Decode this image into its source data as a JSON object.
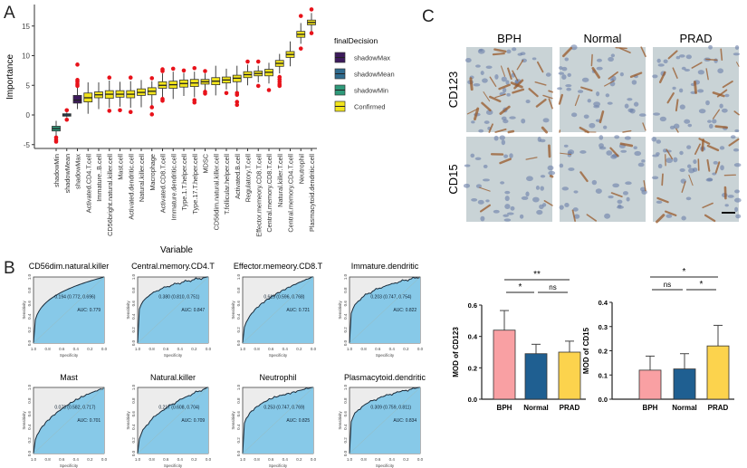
{
  "panels": {
    "a": "A",
    "b": "B",
    "c": "C"
  },
  "chart_data": [
    {
      "type": "boxplot",
      "panel": "A",
      "xlabel": "Variable",
      "ylabel": "Importance",
      "ylim": [
        -5.5,
        18.5
      ],
      "yticks": [
        -5,
        0,
        5,
        10,
        15
      ],
      "legend": {
        "title": "finalDecision",
        "placement": "right",
        "entries": [
          {
            "name": "shadowMax",
            "color": "#3d1a5c"
          },
          {
            "name": "shadowMean",
            "color": "#2f6b8e"
          },
          {
            "name": "shadowMin",
            "color": "#2e9a7a"
          },
          {
            "name": "Confirmed",
            "color": "#f2e41c"
          }
        ]
      },
      "outlier_color": "#e8121a",
      "categories": [
        "shadowMin",
        "shadowMean",
        "shadowMax",
        "Activated.CD4.T.cell",
        "Immature..B.cell",
        "CD56bright.natural.killer.cell",
        "Mast.cell",
        "Activated.dendritic.cell",
        "Natural.killer.cell",
        "Macrophage",
        "Activated.CD8.T.cell",
        "Immature.dendritic.cell",
        "Type.1.T.helper.cell",
        "Type.17.T.helper.cell",
        "MDSC",
        "CD56dim.natural.killer.cell",
        "T.follicular.helper.cell",
        "Activated.B.cell",
        "Regulatory.T.cell",
        "Effector.memeory.CD8.T.cell",
        "Central.memory.CD8.T.cell",
        "Natural.killer.T.cell",
        "Central.memory.CD4.T.cell",
        "Neutrophil",
        "Plasmacytoid.dendritic.cell"
      ],
      "groups": [
        "shadowMin",
        "shadowMean",
        "shadowMax",
        "Confirmed",
        "Confirmed",
        "Confirmed",
        "Confirmed",
        "Confirmed",
        "Confirmed",
        "Confirmed",
        "Confirmed",
        "Confirmed",
        "Confirmed",
        "Confirmed",
        "Confirmed",
        "Confirmed",
        "Confirmed",
        "Confirmed",
        "Confirmed",
        "Confirmed",
        "Confirmed",
        "Confirmed",
        "Confirmed",
        "Confirmed",
        "Confirmed"
      ],
      "boxes": [
        [
          -3.5,
          -2.7,
          -2.3,
          -1.9,
          -1.0
        ],
        [
          -0.4,
          -0.2,
          0,
          0.2,
          0.4
        ],
        [
          1.0,
          2.0,
          2.5,
          3.3,
          4.6
        ],
        [
          0.2,
          2.2,
          2.9,
          3.7,
          5.5
        ],
        [
          1.0,
          2.9,
          3.4,
          3.9,
          5.5
        ],
        [
          1.2,
          2.8,
          3.5,
          4.1,
          5.8
        ],
        [
          1.4,
          3.0,
          3.5,
          4.1,
          5.6
        ],
        [
          1.2,
          2.9,
          3.5,
          4.1,
          5.7
        ],
        [
          1.3,
          3.3,
          3.8,
          4.4,
          5.9
        ],
        [
          1.6,
          3.4,
          4.0,
          4.6,
          5.7
        ],
        [
          3.0,
          4.5,
          5.0,
          5.6,
          7.0
        ],
        [
          2.7,
          4.5,
          5.1,
          5.7,
          7.3
        ],
        [
          3.2,
          4.7,
          5.3,
          5.9,
          7.1
        ],
        [
          3.0,
          4.8,
          5.4,
          6.0,
          7.3
        ],
        [
          4.1,
          5.2,
          5.6,
          6.0,
          7.0
        ],
        [
          3.3,
          5.1,
          5.7,
          6.3,
          8.3
        ],
        [
          4.3,
          5.4,
          5.9,
          6.4,
          7.8
        ],
        [
          3.8,
          5.6,
          6.2,
          6.7,
          8.3
        ],
        [
          5.0,
          6.3,
          6.8,
          7.3,
          8.5
        ],
        [
          5.5,
          6.6,
          7.0,
          7.4,
          8.3
        ],
        [
          5.3,
          6.6,
          7.2,
          7.7,
          8.8
        ],
        [
          7.0,
          8.2,
          8.7,
          9.2,
          10.3
        ],
        [
          8.2,
          9.7,
          10.2,
          10.7,
          12.4
        ],
        [
          12.0,
          13.1,
          13.6,
          14.1,
          15.5
        ],
        [
          14.0,
          15.2,
          15.6,
          16.0,
          17.2
        ]
      ],
      "outliers": [
        [
          -3.8,
          -4.2,
          -4.5
        ],
        [
          0.8,
          -0.8
        ],
        [
          4.9,
          5.2,
          5.6,
          5.9,
          8.5
        ],
        [],
        [],
        [
          0.7,
          6.3
        ],
        [
          0.8
        ],
        [
          0.5,
          6.3
        ],
        [],
        [
          0.1,
          1.3,
          6.2
        ],
        [
          2.4,
          2.7,
          7.4,
          7.7
        ],
        [
          7.8
        ],
        [
          7.5
        ],
        [
          2.1,
          2.5,
          7.9
        ],
        [
          3.6,
          3.9,
          7.4
        ],
        [],
        [
          3.7
        ],
        [
          1.7,
          2.2,
          3.4,
          3.7
        ],
        [
          9.0
        ],
        [
          4.9,
          9.0
        ],
        [
          4.2
        ],
        [
          4.9,
          5.2,
          5.6,
          6.0,
          6.4
        ],
        [],
        [
          11.2,
          16.7
        ],
        [
          13.8,
          17.8
        ]
      ]
    },
    {
      "type": "line",
      "panel": "B",
      "subtype": "roc",
      "xlabel": "Specificity",
      "ylabel": "Sensitivity",
      "xticks": [
        "1.0",
        "0.8",
        "0.6",
        "0.4",
        "0.2",
        "0.0"
      ],
      "yticks": [
        "0.0",
        "0.2",
        "0.4",
        "0.6",
        "0.8",
        "1.0"
      ],
      "fill_color": "#87c9e8",
      "plots": [
        {
          "title": "CD56dim.natural.killer",
          "threshold": "0.194 (0.772, 0.696)",
          "auc": "AUC: 0.779"
        },
        {
          "title": "Central.memory.CD4.T",
          "threshold": "0.380 (0.810, 0.751)",
          "auc": "AUC: 0.847"
        },
        {
          "title": "Effector.memeory.CD8.T",
          "threshold": "0.615 (0.596, 0.768)",
          "auc": "AUC: 0.721"
        },
        {
          "title": "Immature.dendritic",
          "threshold": "0.203 (0.747, 0.754)",
          "auc": "AUC: 0.822"
        },
        {
          "title": "Mast",
          "threshold": "0.073 (0.582, 0.717)",
          "auc": "AUC: 0.701"
        },
        {
          "title": "Natural.killer",
          "threshold": "0.217 (0.608, 0.704)",
          "auc": "AUC: 0.709"
        },
        {
          "title": "Neutrophil",
          "threshold": "0.253 (0.747, 0.769)",
          "auc": "AUC: 0.825"
        },
        {
          "title": "Plasmacytoid.dendritic",
          "threshold": "0.309 (0.759, 0.811)",
          "auc": "AUC: 0.834"
        }
      ]
    },
    {
      "type": "bar",
      "ylabel": "MOD of CD123",
      "categories": [
        "BPH",
        "Normal",
        "PRAD"
      ],
      "values": [
        0.44,
        0.29,
        0.3
      ],
      "errors": [
        0.125,
        0.06,
        0.07
      ],
      "colors": [
        "#f9a0a3",
        "#1f5f91",
        "#fcd34d"
      ],
      "ylim": [
        0,
        0.6
      ],
      "yticks": [
        "0.0",
        "0.2",
        "0.4",
        "0.6"
      ],
      "significance": [
        {
          "from": 0,
          "to": 1,
          "label": "*"
        },
        {
          "from": 1,
          "to": 2,
          "label": "ns"
        },
        {
          "from": 0,
          "to": 2,
          "label": "**"
        }
      ]
    },
    {
      "type": "bar",
      "ylabel": "MOD of CD15",
      "categories": [
        "BPH",
        "Normal",
        "PRAD"
      ],
      "values": [
        0.12,
        0.125,
        0.22
      ],
      "errors": [
        0.058,
        0.063,
        0.085
      ],
      "colors": [
        "#f9a0a3",
        "#1f5f91",
        "#fcd34d"
      ],
      "ylim": [
        0,
        0.4
      ],
      "yticks": [
        "0.0",
        "0.1",
        "0.2",
        "0.3",
        "0.4"
      ],
      "significance": [
        {
          "from": 0,
          "to": 1,
          "label": "ns"
        },
        {
          "from": 1,
          "to": 2,
          "label": "*"
        },
        {
          "from": 0,
          "to": 2,
          "label": "*"
        }
      ]
    }
  ],
  "histology": {
    "columns": [
      "BPH",
      "Normal",
      "PRAD"
    ],
    "rows": [
      "CD123",
      "CD15"
    ],
    "stain_color": "#9a5a2a",
    "background_color": "#c9d3d6"
  }
}
